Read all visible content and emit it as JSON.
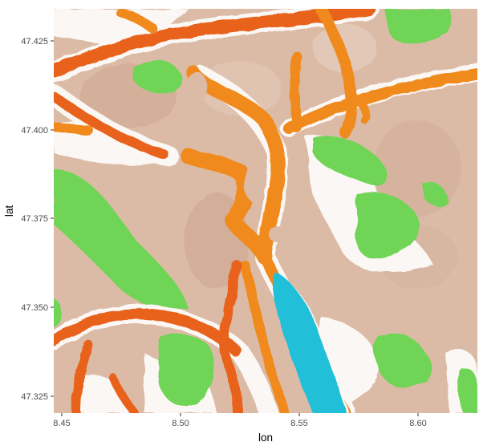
{
  "chart_data": {
    "type": "map",
    "xlabel": "lon",
    "ylabel": "lat",
    "xlim": [
      8.4485,
      8.6255
    ],
    "ylim": [
      47.3205,
      47.4335
    ],
    "x_ticks": [
      8.45,
      8.5,
      8.55,
      8.6
    ],
    "x_tick_labels": [
      "8.45",
      "8.50",
      "8.55",
      "8.60"
    ],
    "y_ticks": [
      47.325,
      47.35,
      47.375,
      47.4,
      47.425
    ],
    "y_tick_labels": [
      "47.325",
      "47.350",
      "47.375",
      "47.400",
      "47.425"
    ],
    "layers": [
      "urban terrain",
      "green areas",
      "major roads",
      "lake"
    ]
  },
  "colors": {
    "terrain": "#dcbba6",
    "green": "#6fd456",
    "road": "#f08a1e",
    "road_dark": "#e8621a",
    "lake": "#22bfd8",
    "gap": "#fbf7f4"
  }
}
